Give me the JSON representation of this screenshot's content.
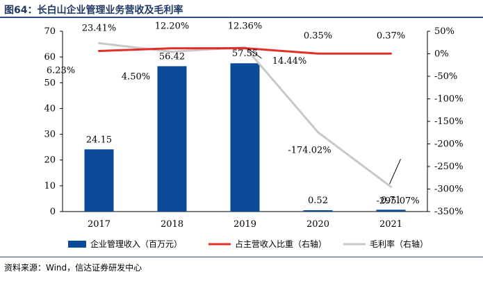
{
  "title": "图64：长白山企业管理业务营收及毛利率",
  "source": "资料来源：Wind，信达证券研发中心",
  "chart_data": {
    "type": "bar",
    "categories": [
      "2017",
      "2018",
      "2019",
      "2020",
      "2021"
    ],
    "series": [
      {
        "name": "企业管理收入（百万元）",
        "type": "bar",
        "axis": "left",
        "color": "#0b4a96",
        "values": [
          24.15,
          56.42,
          57.55,
          0.52,
          0.71
        ],
        "labels": [
          "24.15",
          "56.42",
          "57.55",
          "0.52",
          "0.71"
        ]
      },
      {
        "name": "占主营收入比重（右轴）",
        "type": "line",
        "axis": "right",
        "color": "#e03028",
        "values": [
          6.23,
          12.2,
          12.36,
          0.35,
          0.37
        ],
        "labels": [
          "6.23%",
          "12.20%",
          "12.36%",
          "0.35%",
          "0.37%"
        ]
      },
      {
        "name": "毛利率（右轴）",
        "type": "line",
        "axis": "right",
        "color": "#c8c8c8",
        "values": [
          23.41,
          4.5,
          14.44,
          -174.02,
          -295.07
        ],
        "labels": [
          "23.41%",
          "4.50%",
          "14.44%",
          "-174.02%",
          "-295.07%"
        ]
      }
    ],
    "left_axis": {
      "ylim": [
        0,
        70
      ],
      "ticks": [
        "0",
        "10",
        "20",
        "30",
        "40",
        "50",
        "60",
        "70"
      ]
    },
    "right_axis": {
      "ylim": [
        -350,
        50
      ],
      "ticks": [
        "-350%",
        "-300%",
        "-250%",
        "-200%",
        "-150%",
        "-100%",
        "-50%",
        "0%",
        "50%"
      ]
    },
    "grid": false,
    "legend_position": "bottom"
  }
}
